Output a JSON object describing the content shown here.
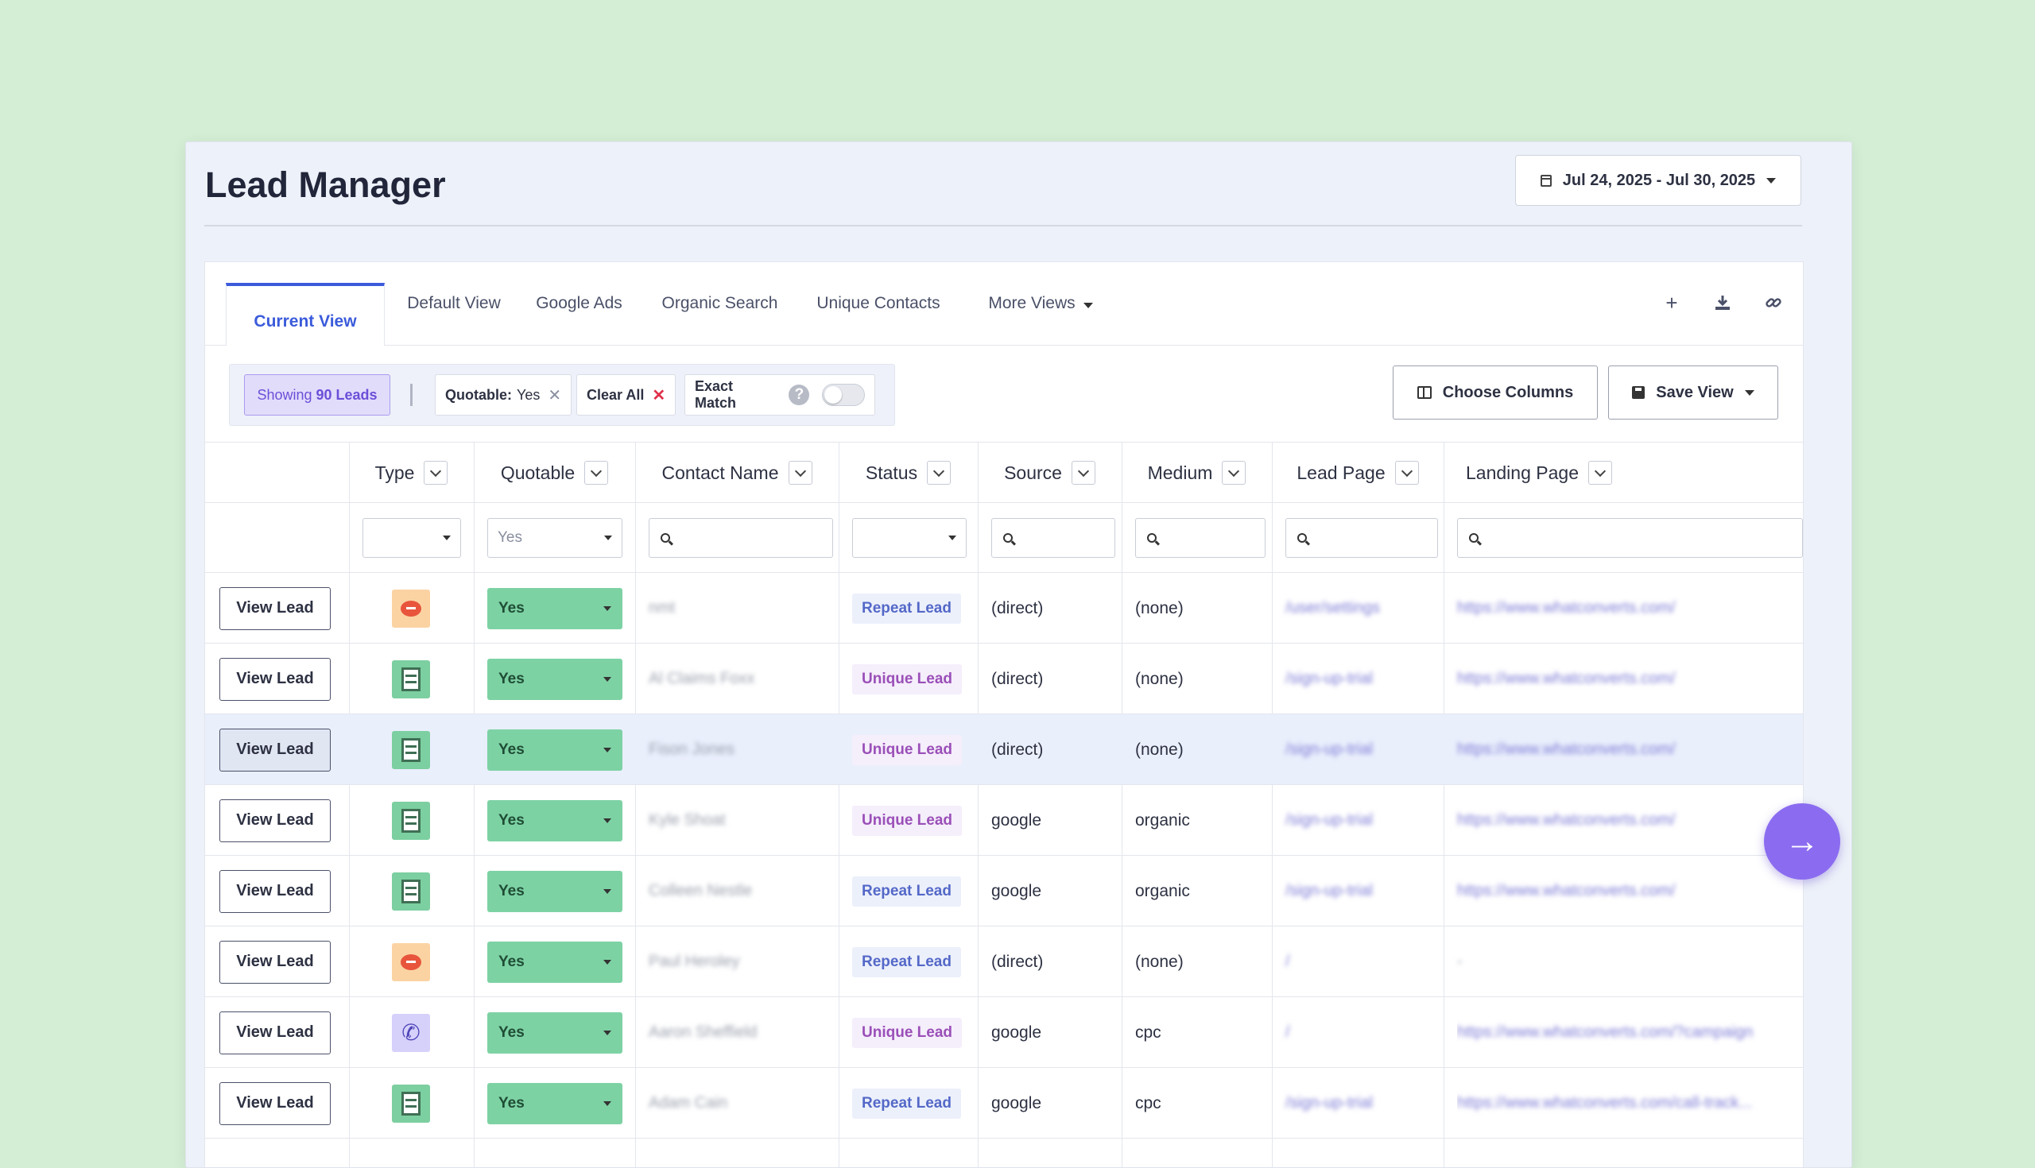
{
  "app": {
    "title": "Lead Manager"
  },
  "date_range": {
    "label": "Jul 24, 2025 - Jul 30, 2025"
  },
  "tabs": [
    {
      "label": "Current View"
    },
    {
      "label": "Default View"
    },
    {
      "label": "Google Ads"
    },
    {
      "label": "Organic Search"
    },
    {
      "label": "Unique Contacts"
    },
    {
      "label": "More Views"
    }
  ],
  "toolbar_icons": [
    "plus-icon",
    "download-icon",
    "link-icon"
  ],
  "filters": {
    "showing_prefix": "Showing",
    "showing_count": "90 Leads",
    "quotable_key": "Quotable:",
    "quotable_value": "Yes",
    "clear_all": "Clear All",
    "exact_match": "Exact Match",
    "help": "?"
  },
  "buttons": {
    "choose_columns": "Choose Columns",
    "save_view": "Save View"
  },
  "columns": [
    {
      "label": "Type"
    },
    {
      "label": "Quotable"
    },
    {
      "label": "Contact Name"
    },
    {
      "label": "Status"
    },
    {
      "label": "Source"
    },
    {
      "label": "Medium"
    },
    {
      "label": "Lead Page"
    },
    {
      "label": "Landing Page"
    }
  ],
  "column_filters": {
    "quotable_value": "Yes"
  },
  "rows": [
    {
      "action": "View Lead",
      "type": "chat",
      "quotable": "Yes",
      "contact": "nmt",
      "status": "Repeat Lead",
      "source": "(direct)",
      "medium": "(none)",
      "lead_page": "/user/settings",
      "landing_page": "https://www.whatconverts.com/"
    },
    {
      "action": "View Lead",
      "type": "form",
      "quotable": "Yes",
      "contact": "Al Claims Foxx",
      "status": "Unique Lead",
      "source": "(direct)",
      "medium": "(none)",
      "lead_page": "/sign-up-trial",
      "landing_page": "https://www.whatconverts.com/"
    },
    {
      "action": "View Lead",
      "type": "form",
      "quotable": "Yes",
      "contact": "Fison Jones",
      "status": "Unique Lead",
      "source": "(direct)",
      "medium": "(none)",
      "lead_page": "/sign-up-trial",
      "landing_page": "https://www.whatconverts.com/"
    },
    {
      "action": "View Lead",
      "type": "form",
      "quotable": "Yes",
      "contact": "Kyle Shoat",
      "status": "Unique Lead",
      "source": "google",
      "medium": "organic",
      "lead_page": "/sign-up-trial",
      "landing_page": "https://www.whatconverts.com/"
    },
    {
      "action": "View Lead",
      "type": "form",
      "quotable": "Yes",
      "contact": "Colleen Nestle",
      "status": "Repeat Lead",
      "source": "google",
      "medium": "organic",
      "lead_page": "/sign-up-trial",
      "landing_page": "https://www.whatconverts.com/"
    },
    {
      "action": "View Lead",
      "type": "chat",
      "quotable": "Yes",
      "contact": "Paul Heroley",
      "status": "Repeat Lead",
      "source": "(direct)",
      "medium": "(none)",
      "lead_page": "/",
      "landing_page": "-"
    },
    {
      "action": "View Lead",
      "type": "call",
      "quotable": "Yes",
      "contact": "Aaron Sheffield",
      "status": "Unique Lead",
      "source": "google",
      "medium": "cpc",
      "lead_page": "/",
      "landing_page": "https://www.whatconverts.com/?campaign"
    },
    {
      "action": "View Lead",
      "type": "form",
      "quotable": "Yes",
      "contact": "Adam Cain",
      "status": "Repeat Lead",
      "source": "google",
      "medium": "cpc",
      "lead_page": "/sign-up-trial",
      "landing_page": "https://www.whatconverts.com/call-track..."
    }
  ],
  "fab": {
    "icon": "arrow-right-icon",
    "glyph": "→"
  },
  "colors": {
    "accent": "#3b5bdb",
    "quotable_yes": "#7dd2a4",
    "fab": "#8b6cf0"
  }
}
